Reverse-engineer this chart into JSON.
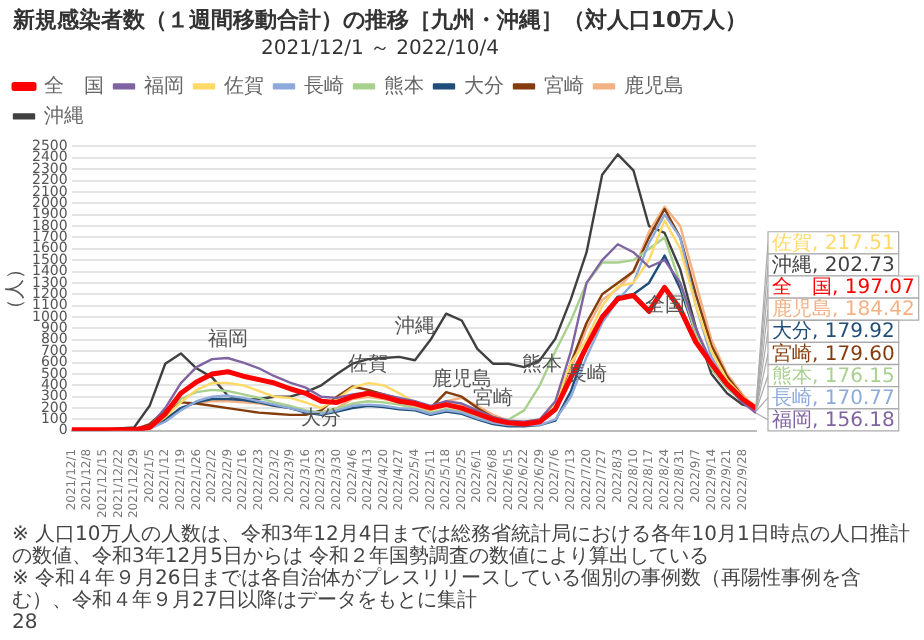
{
  "chart_data": {
    "type": "line",
    "title": "新規感染者数（１週間移動合計）の推移［九州・沖縄］（対人口10万人）",
    "subtitle": "2021/12/1 ～ 2022/10/4",
    "ylabel": "（人）",
    "x": [
      "2021-12-01",
      "2021-12-08",
      "2021-12-15",
      "2021-12-22",
      "2021-12-29",
      "2022-01-05",
      "2022-01-12",
      "2022-01-19",
      "2022-01-26",
      "2022-02-02",
      "2022-02-09",
      "2022-02-16",
      "2022-02-23",
      "2022-03-02",
      "2022-03-09",
      "2022-03-16",
      "2022-03-23",
      "2022-03-30",
      "2022-04-06",
      "2022-04-13",
      "2022-04-20",
      "2022-04-27",
      "2022-05-04",
      "2022-05-11",
      "2022-05-18",
      "2022-05-25",
      "2022-06-01",
      "2022-06-08",
      "2022-06-15",
      "2022-06-22",
      "2022-06-29",
      "2022-07-06",
      "2022-07-13",
      "2022-07-20",
      "2022-07-27",
      "2022-08-03",
      "2022-08-10",
      "2022-08-17",
      "2022-08-24",
      "2022-08-31",
      "2022-09-07",
      "2022-09-14",
      "2022-09-21",
      "2022-09-28",
      "2022-10-04"
    ],
    "xlim": [
      "2021-12-01",
      "2022-10-04"
    ],
    "xticks": [
      {
        "value": "2021-12-01",
        "label": "2021/12/1"
      },
      {
        "value": "2021-12-08",
        "label": "2021/12/8"
      },
      {
        "value": "2021-12-15",
        "label": "2021/12/15"
      },
      {
        "value": "2021-12-22",
        "label": "2021/12/22"
      },
      {
        "value": "2021-12-29",
        "label": "2021/12/29"
      },
      {
        "value": "2022-01-05",
        "label": "2022/1/5"
      },
      {
        "value": "2022-01-12",
        "label": "2022/1/12"
      },
      {
        "value": "2022-01-19",
        "label": "2022/1/19"
      },
      {
        "value": "2022-01-26",
        "label": "2022/1/26"
      },
      {
        "value": "2022-02-02",
        "label": "2022/2/2"
      },
      {
        "value": "2022-02-09",
        "label": "2022/2/9"
      },
      {
        "value": "2022-02-16",
        "label": "2022/2/16"
      },
      {
        "value": "2022-02-23",
        "label": "2022/2/23"
      },
      {
        "value": "2022-03-02",
        "label": "2022/3/2"
      },
      {
        "value": "2022-03-09",
        "label": "2022/3/9"
      },
      {
        "value": "2022-03-16",
        "label": "2022/3/16"
      },
      {
        "value": "2022-03-23",
        "label": "2022/3/23"
      },
      {
        "value": "2022-03-30",
        "label": "2022/3/30"
      },
      {
        "value": "2022-04-06",
        "label": "2022/4/6"
      },
      {
        "value": "2022-04-13",
        "label": "2022/4/13"
      },
      {
        "value": "2022-04-20",
        "label": "2022/4/20"
      },
      {
        "value": "2022-04-27",
        "label": "2022/4/27"
      },
      {
        "value": "2022-05-04",
        "label": "2022/5/4"
      },
      {
        "value": "2022-05-11",
        "label": "2022/5/11"
      },
      {
        "value": "2022-05-18",
        "label": "2022/5/18"
      },
      {
        "value": "2022-05-25",
        "label": "2022/5/25"
      },
      {
        "value": "2022-06-01",
        "label": "2022/6/1"
      },
      {
        "value": "2022-06-08",
        "label": "2022/6/8"
      },
      {
        "value": "2022-06-15",
        "label": "2022/6/15"
      },
      {
        "value": "2022-06-22",
        "label": "2022/6/22"
      },
      {
        "value": "2022-06-29",
        "label": "2022/6/29"
      },
      {
        "value": "2022-07-06",
        "label": "2022/7/6"
      },
      {
        "value": "2022-07-13",
        "label": "2022/7/13"
      },
      {
        "value": "2022-07-20",
        "label": "2022/7/20"
      },
      {
        "value": "2022-07-27",
        "label": "2022/7/27"
      },
      {
        "value": "2022-08-03",
        "label": "2022/8/3"
      },
      {
        "value": "2022-08-10",
        "label": "2022/8/10"
      },
      {
        "value": "2022-08-17",
        "label": "2022/8/17"
      },
      {
        "value": "2022-08-24",
        "label": "2022/8/24"
      },
      {
        "value": "2022-08-31",
        "label": "2022/8/31"
      },
      {
        "value": "2022-09-07",
        "label": "2022/9/7"
      },
      {
        "value": "2022-09-14",
        "label": "2022/9/14"
      },
      {
        "value": "2022-09-21",
        "label": "2022/9/21"
      },
      {
        "value": "2022-09-28",
        "label": "2022/9/28"
      }
    ],
    "ylim": [
      0,
      2500
    ],
    "yticks": [
      0,
      100,
      200,
      300,
      400,
      500,
      600,
      700,
      800,
      900,
      1000,
      1100,
      1200,
      1300,
      1400,
      1500,
      1600,
      1700,
      1800,
      1900,
      2000,
      2100,
      2200,
      2300,
      2400,
      2500
    ],
    "grid": "y",
    "legend": "top left",
    "marker": "none",
    "line_style": "solid",
    "series": [
      {
        "name": "全　国",
        "color": "#ff0000",
        "values": [
          10,
          10,
          10,
          10,
          10,
          30,
          150,
          330,
          430,
          500,
          520,
          480,
          450,
          420,
          370,
          330,
          260,
          250,
          300,
          330,
          300,
          260,
          240,
          200,
          230,
          200,
          150,
          100,
          70,
          60,
          80,
          190,
          470,
          740,
          1000,
          1160,
          1190,
          1050,
          1260,
          1070,
          780,
          590,
          410,
          280,
          197.07
        ],
        "value_labels": [
          null,
          null,
          null,
          null,
          null,
          null,
          null,
          null,
          null,
          null,
          null,
          null,
          null,
          null,
          null,
          null,
          null,
          null,
          null,
          null,
          null,
          null,
          null,
          null,
          null,
          null,
          null,
          null,
          null,
          null,
          null,
          null,
          null,
          null,
          null,
          null,
          null,
          null,
          null,
          null,
          null,
          null,
          null,
          null,
          "全　国, 197.07"
        ]
      },
      {
        "name": "福岡",
        "color": "#8064a2",
        "values": [
          null,
          null,
          null,
          null,
          10,
          40,
          200,
          420,
          560,
          630,
          640,
          600,
          550,
          480,
          424,
          380,
          300,
          290,
          320,
          340,
          320,
          290,
          260,
          220,
          260,
          240,
          180,
          120,
          90,
          80,
          100,
          260,
          700,
          1300,
          1500,
          1640,
          1570,
          1440,
          1500,
          1300,
          900,
          600,
          400,
          250,
          156.18
        ],
        "value_labels": [
          null,
          null,
          null,
          null,
          null,
          null,
          null,
          null,
          null,
          null,
          null,
          null,
          null,
          null,
          null,
          null,
          null,
          null,
          null,
          null,
          null,
          null,
          null,
          null,
          null,
          null,
          null,
          null,
          null,
          null,
          null,
          null,
          null,
          null,
          null,
          null,
          null,
          null,
          null,
          null,
          null,
          null,
          null,
          null,
          "福岡, 156.18"
        ]
      },
      {
        "name": "佐賀",
        "color": "#ffd966",
        "values": [
          null,
          null,
          null,
          null,
          null,
          30,
          120,
          250,
          360,
          420,
          420,
          400,
          350,
          300,
          290,
          250,
          200,
          280,
          380,
          420,
          400,
          330,
          250,
          180,
          230,
          220,
          160,
          110,
          80,
          70,
          90,
          230,
          600,
          800,
          1100,
          1270,
          1300,
          1500,
          1850,
          1600,
          1100,
          700,
          450,
          300,
          217.51
        ],
        "value_labels": [
          null,
          null,
          null,
          null,
          null,
          null,
          null,
          null,
          null,
          null,
          null,
          null,
          null,
          null,
          null,
          null,
          null,
          null,
          null,
          null,
          null,
          null,
          null,
          null,
          null,
          null,
          null,
          null,
          null,
          null,
          null,
          null,
          null,
          null,
          null,
          null,
          null,
          null,
          null,
          null,
          null,
          null,
          null,
          null,
          "佐賀, 217.51"
        ]
      },
      {
        "name": "長崎",
        "color": "#8eaadb",
        "values": [
          null,
          null,
          null,
          null,
          10,
          20,
          80,
          180,
          260,
          300,
          310,
          290,
          260,
          230,
          200,
          170,
          150,
          180,
          220,
          230,
          220,
          200,
          190,
          150,
          180,
          160,
          110,
          70,
          50,
          50,
          50,
          100,
          300,
          650,
          950,
          1150,
          1300,
          1650,
          1900,
          1700,
          1100,
          650,
          420,
          260,
          170.77
        ],
        "value_labels": [
          null,
          null,
          null,
          null,
          null,
          null,
          null,
          null,
          null,
          null,
          null,
          null,
          null,
          null,
          null,
          null,
          null,
          null,
          null,
          null,
          null,
          null,
          null,
          null,
          null,
          null,
          null,
          null,
          null,
          null,
          null,
          null,
          null,
          null,
          null,
          null,
          null,
          null,
          null,
          null,
          null,
          null,
          null,
          null,
          "長崎, 170.77"
        ]
      },
      {
        "name": "熊本",
        "color": "#a9d18e",
        "values": [
          null,
          null,
          null,
          null,
          10,
          40,
          160,
          280,
          340,
          360,
          350,
          320,
          290,
          250,
          220,
          180,
          160,
          200,
          240,
          260,
          250,
          230,
          200,
          160,
          190,
          170,
          120,
          90,
          100,
          180,
          400,
          700,
          970,
          1300,
          1480,
          1480,
          1500,
          1600,
          1700,
          1300,
          850,
          550,
          380,
          260,
          176.15
        ],
        "value_labels": [
          null,
          null,
          null,
          null,
          null,
          null,
          null,
          null,
          null,
          null,
          null,
          null,
          null,
          null,
          null,
          null,
          null,
          null,
          null,
          null,
          null,
          null,
          null,
          null,
          null,
          null,
          null,
          null,
          null,
          null,
          null,
          null,
          null,
          null,
          null,
          null,
          null,
          null,
          null,
          null,
          null,
          null,
          null,
          null,
          "熊本, 176.15"
        ]
      },
      {
        "name": "大分",
        "color": "#1f4e79",
        "values": [
          null,
          null,
          null,
          null,
          10,
          20,
          100,
          200,
          250,
          280,
          280,
          270,
          250,
          220,
          200,
          160,
          140,
          170,
          200,
          220,
          210,
          190,
          180,
          140,
          170,
          150,
          100,
          60,
          40,
          40,
          50,
          90,
          350,
          750,
          1000,
          1180,
          1200,
          1300,
          1540,
          1250,
          850,
          550,
          380,
          260,
          179.92
        ],
        "value_labels": [
          null,
          null,
          null,
          null,
          null,
          null,
          null,
          null,
          null,
          null,
          null,
          null,
          null,
          null,
          null,
          null,
          null,
          null,
          null,
          null,
          null,
          null,
          null,
          null,
          null,
          null,
          null,
          null,
          null,
          null,
          null,
          null,
          null,
          null,
          null,
          null,
          null,
          null,
          null,
          null,
          null,
          null,
          null,
          null,
          "大分, 179.92"
        ]
      },
      {
        "name": "宮崎",
        "color": "#843c0c",
        "values": [
          null,
          null,
          null,
          null,
          10,
          60,
          180,
          250,
          240,
          220,
          200,
          180,
          160,
          150,
          140,
          140,
          180,
          300,
          390,
          360,
          320,
          280,
          240,
          200,
          340,
          300,
          200,
          120,
          80,
          70,
          90,
          200,
          600,
          950,
          1200,
          1300,
          1400,
          1700,
          1950,
          1700,
          1200,
          750,
          480,
          300,
          179.6
        ],
        "value_labels": [
          null,
          null,
          null,
          null,
          null,
          null,
          null,
          null,
          null,
          null,
          null,
          null,
          null,
          null,
          null,
          null,
          null,
          null,
          null,
          null,
          null,
          null,
          null,
          null,
          null,
          null,
          null,
          null,
          null,
          null,
          null,
          null,
          null,
          null,
          null,
          null,
          null,
          null,
          null,
          null,
          null,
          null,
          null,
          null,
          "宮崎, 179.60"
        ]
      },
      {
        "name": "鹿児島",
        "color": "#f4b183",
        "values": [
          null,
          null,
          null,
          null,
          10,
          20,
          90,
          200,
          250,
          260,
          260,
          250,
          240,
          220,
          200,
          170,
          160,
          200,
          280,
          300,
          280,
          250,
          220,
          180,
          260,
          290,
          220,
          140,
          90,
          80,
          100,
          220,
          550,
          900,
          1150,
          1250,
          1400,
          1750,
          1970,
          1800,
          1300,
          800,
          500,
          320,
          184.42
        ],
        "value_labels": [
          null,
          null,
          null,
          null,
          null,
          null,
          null,
          null,
          null,
          null,
          null,
          null,
          null,
          null,
          null,
          null,
          null,
          null,
          null,
          null,
          null,
          null,
          null,
          null,
          null,
          null,
          null,
          null,
          null,
          null,
          null,
          null,
          null,
          null,
          null,
          null,
          null,
          null,
          null,
          null,
          null,
          null,
          null,
          null,
          "鹿児島, 184.42"
        ]
      },
      {
        "name": "沖縄",
        "color": "#404040",
        "values": [
          10,
          10,
          10,
          20,
          30,
          220,
          590,
          680,
          550,
          470,
          310,
          270,
          280,
          300,
          300,
          340,
          400,
          500,
          590,
          630,
          640,
          650,
          620,
          800,
          1030,
          970,
          720,
          590,
          590,
          560,
          620,
          810,
          1160,
          1570,
          2250,
          2430,
          2290,
          1800,
          1740,
          1420,
          910,
          500,
          330,
          230,
          202.73
        ],
        "value_labels": [
          null,
          null,
          null,
          null,
          null,
          null,
          null,
          null,
          null,
          null,
          null,
          null,
          null,
          null,
          null,
          null,
          null,
          null,
          null,
          null,
          null,
          null,
          null,
          null,
          null,
          null,
          null,
          null,
          null,
          null,
          null,
          null,
          null,
          null,
          null,
          null,
          null,
          null,
          null,
          null,
          null,
          null,
          null,
          null,
          "沖縄, 202.73"
        ]
      }
    ],
    "annotations": [
      {
        "text": "福岡",
        "x": "2022-02-09",
        "y": 640
      },
      {
        "text": "沖縄",
        "x": "2022-05-04",
        "y": 760
      },
      {
        "text": "佐賀",
        "x": "2022-04-13",
        "y": 420
      },
      {
        "text": "鹿児島",
        "x": "2022-05-25",
        "y": 290
      },
      {
        "text": "宮崎",
        "x": "2022-06-08",
        "y": 120
      },
      {
        "text": "熊本",
        "x": "2022-06-30",
        "y": 424
      },
      {
        "text": "全国",
        "x": "2022-08-24",
        "y": 1260
      },
      {
        "text": "大分",
        "x": "2022-03-23",
        "y": 140
      },
      {
        "text": "長崎",
        "x": "2022-07-20",
        "y": 650
      },
      "※ 人口10万人の人数は、令和3年12月4日までは総務省統計局における各年10月1日時点の人口推計の数値、令和3年12月5日からは 令和２年国勢調査の数値により算出している",
      "※ 令和４年９月26日までは各自治体がプレスリリースしている個別の事例数（再陽性事例を含む）、令和４年９月27日以降はデータをもとに集計",
      "28"
    ]
  }
}
